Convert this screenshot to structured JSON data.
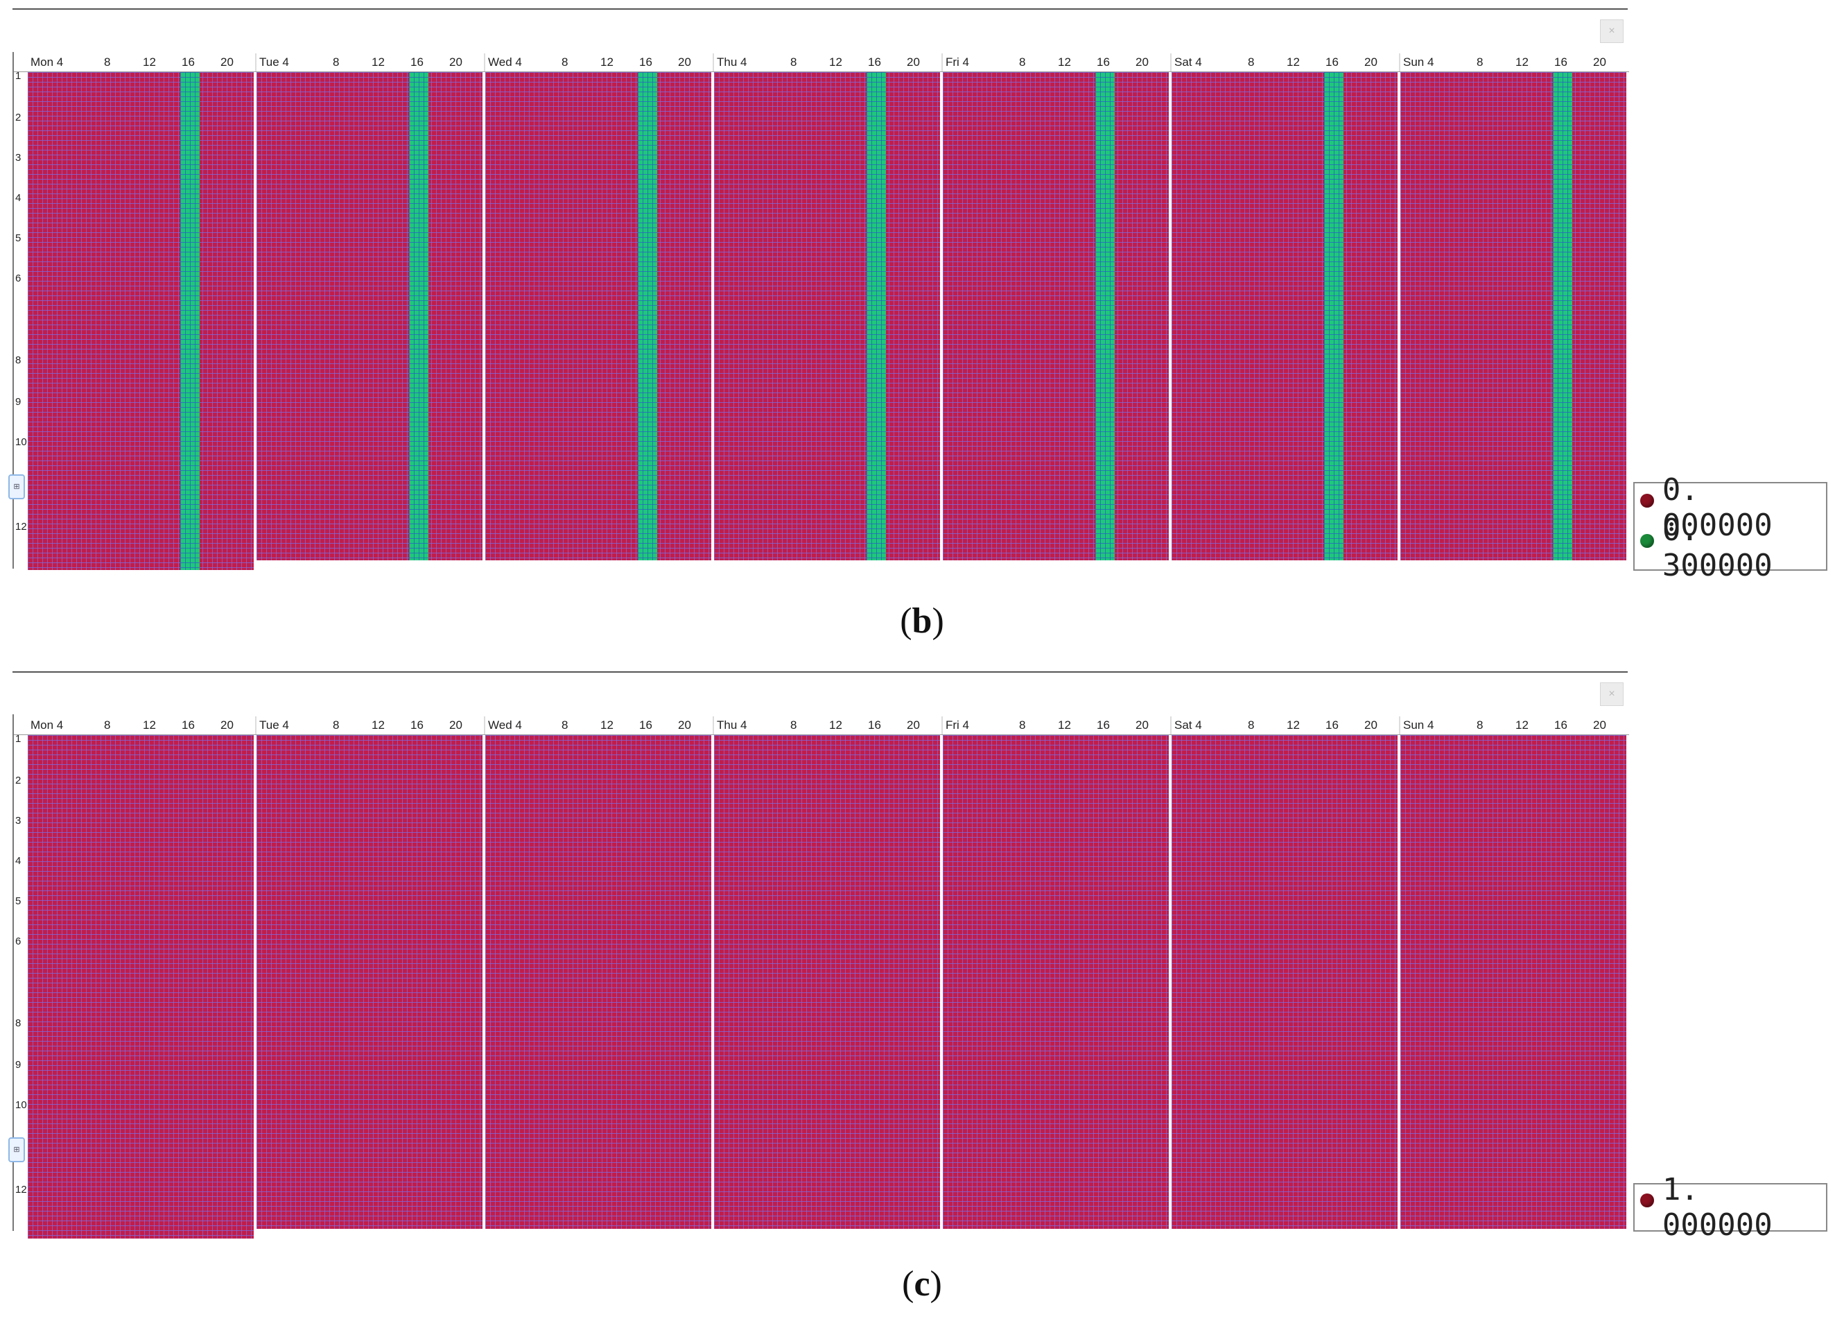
{
  "colors": {
    "cell_red": "#c21d4a",
    "cell_green": "#1ec87a",
    "grid_line": "#786ee6"
  },
  "day_headers": [
    {
      "day": "Mon 4",
      "ticks": [
        "8",
        "12",
        "16",
        "20"
      ]
    },
    {
      "day": "Tue 4",
      "ticks": [
        "8",
        "12",
        "16",
        "20"
      ]
    },
    {
      "day": "Wed 4",
      "ticks": [
        "8",
        "12",
        "16",
        "20"
      ]
    },
    {
      "day": "Thu 4",
      "ticks": [
        "8",
        "12",
        "16",
        "20"
      ]
    },
    {
      "day": "Fri 4",
      "ticks": [
        "8",
        "12",
        "16",
        "20"
      ]
    },
    {
      "day": "Sat 4",
      "ticks": [
        "8",
        "12",
        "16",
        "20"
      ]
    },
    {
      "day": "Sun 4",
      "ticks": [
        "8",
        "12",
        "16",
        "20"
      ]
    }
  ],
  "row_labels": [
    "1",
    "2",
    "3",
    "4",
    "5",
    "6",
    "8",
    "9",
    "10",
    "12"
  ],
  "panel_b": {
    "caption_label": "b",
    "legend": [
      {
        "color": "#8b1020",
        "value": "0. 000000"
      },
      {
        "color": "#1a8a3a",
        "value": "0. 300000"
      }
    ],
    "highlight_hour": 16
  },
  "panel_c": {
    "caption_label": "c",
    "legend": [
      {
        "color": "#8b1020",
        "value": "1. 000000"
      }
    ]
  },
  "icons": {
    "close": "close-icon",
    "side": "side-tab-icon"
  }
}
